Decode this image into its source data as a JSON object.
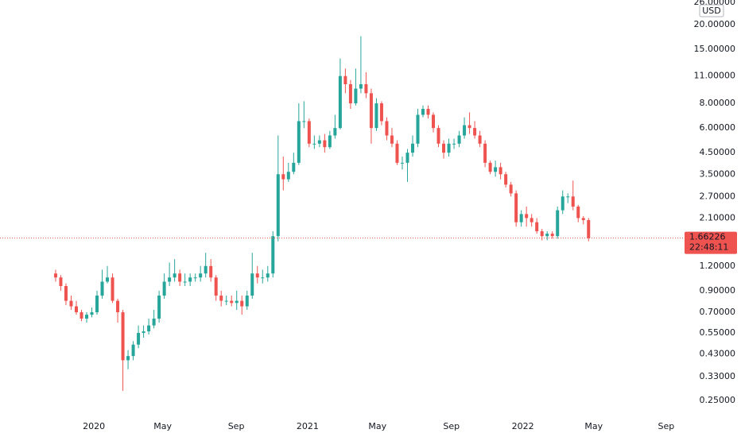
{
  "chart_data": {
    "type": "candlestick",
    "currency": "USD",
    "countdown": "22:48:11",
    "up_color": "#26a69a",
    "down_color": "#ef5350",
    "log_scale": true,
    "grid": false,
    "ylim": [
      0.206,
      26.7
    ],
    "yticks": [
      {
        "value": 26,
        "label": "26.00000"
      },
      {
        "value": 20,
        "label": "20.00000"
      },
      {
        "value": 15,
        "label": "15.00000"
      },
      {
        "value": 11,
        "label": "11.00000"
      },
      {
        "value": 8,
        "label": "8.00000"
      },
      {
        "value": 6,
        "label": "6.00000"
      },
      {
        "value": 4.5,
        "label": "4.50000"
      },
      {
        "value": 3.5,
        "label": "3.50000"
      },
      {
        "value": 2.7,
        "label": "2.70000"
      },
      {
        "value": 2.1,
        "label": "2.10000"
      },
      {
        "value": 1.2,
        "label": "1.20000"
      },
      {
        "value": 0.9,
        "label": "0.90000"
      },
      {
        "value": 0.7,
        "label": "0.70000"
      },
      {
        "value": 0.55,
        "label": "0.55000"
      },
      {
        "value": 0.43,
        "label": "0.43000"
      },
      {
        "value": 0.33,
        "label": "0.33000"
      },
      {
        "value": 0.25,
        "label": "0.25000"
      }
    ],
    "xlim": [
      -10.75,
      121.4
    ],
    "xticks": [
      {
        "value": 7.4,
        "label": "2020"
      },
      {
        "value": 20.7,
        "label": "May"
      },
      {
        "value": 34.9,
        "label": "Sep"
      },
      {
        "value": 48.7,
        "label": "2021"
      },
      {
        "value": 62.2,
        "label": "May"
      },
      {
        "value": 76.5,
        "label": "Sep"
      },
      {
        "value": 90.3,
        "label": "2022"
      },
      {
        "value": 104,
        "label": "May"
      },
      {
        "value": 118,
        "label": "Sep"
      }
    ],
    "open": [
      1.1,
      1.05,
      0.95,
      0.8,
      0.75,
      0.7,
      0.65,
      0.68,
      0.7,
      0.85,
      1.0,
      1.05,
      0.8,
      0.7,
      0.4,
      0.42,
      0.48,
      0.55,
      0.56,
      0.6,
      0.65,
      0.85,
      1.0,
      1.05,
      1.1,
      1.0,
      1.0,
      1.05,
      1.05,
      1.1,
      1.2,
      1.05,
      0.85,
      0.8,
      0.8,
      0.78,
      0.8,
      0.75,
      0.85,
      1.1,
      1.05,
      1.05,
      1.1,
      1.7,
      3.5,
      3.3,
      3.6,
      4.0,
      6.5,
      6.5,
      5.0,
      5.0,
      5.2,
      4.8,
      5.5,
      6.0,
      11.0,
      10.0,
      8.0,
      9.5,
      10.0,
      9.0,
      6.0,
      8.0,
      6.5,
      5.5,
      5.0,
      4.0,
      4.0,
      4.5,
      5.0,
      7.0,
      7.5,
      7.0,
      6.0,
      5.0,
      4.5,
      5.0,
      5.0,
      5.5,
      6.2,
      6.0,
      5.5,
      5.0,
      4.0,
      3.6,
      3.8,
      3.5,
      3.1,
      2.8,
      2.0,
      2.2,
      2.1,
      2.0,
      1.8,
      1.7,
      1.75,
      1.7,
      2.3,
      2.7,
      2.7,
      2.4,
      2.1,
      2.05
    ],
    "high": [
      1.15,
      1.08,
      0.98,
      0.85,
      0.8,
      0.72,
      0.7,
      0.74,
      0.9,
      1.15,
      1.2,
      1.1,
      0.82,
      0.72,
      0.45,
      0.5,
      0.6,
      0.6,
      0.65,
      0.72,
      0.9,
      1.1,
      1.25,
      1.3,
      1.15,
      1.1,
      1.1,
      1.1,
      1.2,
      1.4,
      1.3,
      1.08,
      0.9,
      0.85,
      0.85,
      0.9,
      0.85,
      0.9,
      1.4,
      1.2,
      1.15,
      1.2,
      1.8,
      5.5,
      4.3,
      4.0,
      4.5,
      8.0,
      8.2,
      6.7,
      5.5,
      5.5,
      5.6,
      5.8,
      7.0,
      13.5,
      12,
      10.5,
      12,
      17.5,
      11.5,
      9.5,
      8.5,
      8.2,
      6.8,
      6,
      5.2,
      4.3,
      4.7,
      5.5,
      7.5,
      7.8,
      7.8,
      7.2,
      6.2,
      5.2,
      5.3,
      5.3,
      5.8,
      6.8,
      7.2,
      6.5,
      5.8,
      5.2,
      4.1,
      4.1,
      4.0,
      3.6,
      3.2,
      2.9,
      2.3,
      2.4,
      2.2,
      2.1,
      1.85,
      1.8,
      1.8,
      2.4,
      2.9,
      2.8,
      3.25,
      2.45,
      2.15,
      2.1
    ],
    "low": [
      1.0,
      0.9,
      0.76,
      0.72,
      0.68,
      0.63,
      0.62,
      0.66,
      0.68,
      0.82,
      0.98,
      0.78,
      0.62,
      0.28,
      0.36,
      0.4,
      0.46,
      0.52,
      0.54,
      0.58,
      0.62,
      0.82,
      0.95,
      1.0,
      0.95,
      0.95,
      0.95,
      1.0,
      1.0,
      1.05,
      1.0,
      0.8,
      0.75,
      0.76,
      0.75,
      0.72,
      0.68,
      0.72,
      0.82,
      0.98,
      0.98,
      1.0,
      1.05,
      1.6,
      2.9,
      3.2,
      3.5,
      3.9,
      6.0,
      4.8,
      4.7,
      4.8,
      4.5,
      4.7,
      5.3,
      5.9,
      9.0,
      7.5,
      7.8,
      9.0,
      8.5,
      5.0,
      5.8,
      6.2,
      5.2,
      4.8,
      3.9,
      3.7,
      3.2,
      4.3,
      4.8,
      6.8,
      6.7,
      5.7,
      4.8,
      4.2,
      4.3,
      4.7,
      4.8,
      5.3,
      5.6,
      5.3,
      4.8,
      3.8,
      3.5,
      3.4,
      3.3,
      3.0,
      2.7,
      1.9,
      1.9,
      1.9,
      1.9,
      1.75,
      1.62,
      1.62,
      1.65,
      1.65,
      2.2,
      2.5,
      2.3,
      2.0,
      1.95,
      1.6
    ],
    "close": [
      1.05,
      0.95,
      0.8,
      0.75,
      0.7,
      0.65,
      0.68,
      0.7,
      0.85,
      1.0,
      1.05,
      0.8,
      0.7,
      0.4,
      0.42,
      0.48,
      0.55,
      0.56,
      0.6,
      0.65,
      0.85,
      1.0,
      1.05,
      1.1,
      1.0,
      1.0,
      1.05,
      1.05,
      1.1,
      1.2,
      1.05,
      0.85,
      0.8,
      0.8,
      0.78,
      0.8,
      0.75,
      0.85,
      1.1,
      1.05,
      1.05,
      1.1,
      1.7,
      3.5,
      3.3,
      3.6,
      4.0,
      6.5,
      6.5,
      5.0,
      5.0,
      5.2,
      4.8,
      5.5,
      6.0,
      11.0,
      10.0,
      8.0,
      9.5,
      10.0,
      9.0,
      6.0,
      8.0,
      6.5,
      5.5,
      5.0,
      4.0,
      4.0,
      4.5,
      5.0,
      7.0,
      7.5,
      7.0,
      6.0,
      5.0,
      4.5,
      5.0,
      5.0,
      5.5,
      6.2,
      6.0,
      5.5,
      5.0,
      4.0,
      3.6,
      3.8,
      3.5,
      3.1,
      2.8,
      2.0,
      2.2,
      2.1,
      2.0,
      1.8,
      1.7,
      1.75,
      1.7,
      2.3,
      2.7,
      2.7,
      2.4,
      2.1,
      2.05,
      1.66226
    ]
  }
}
